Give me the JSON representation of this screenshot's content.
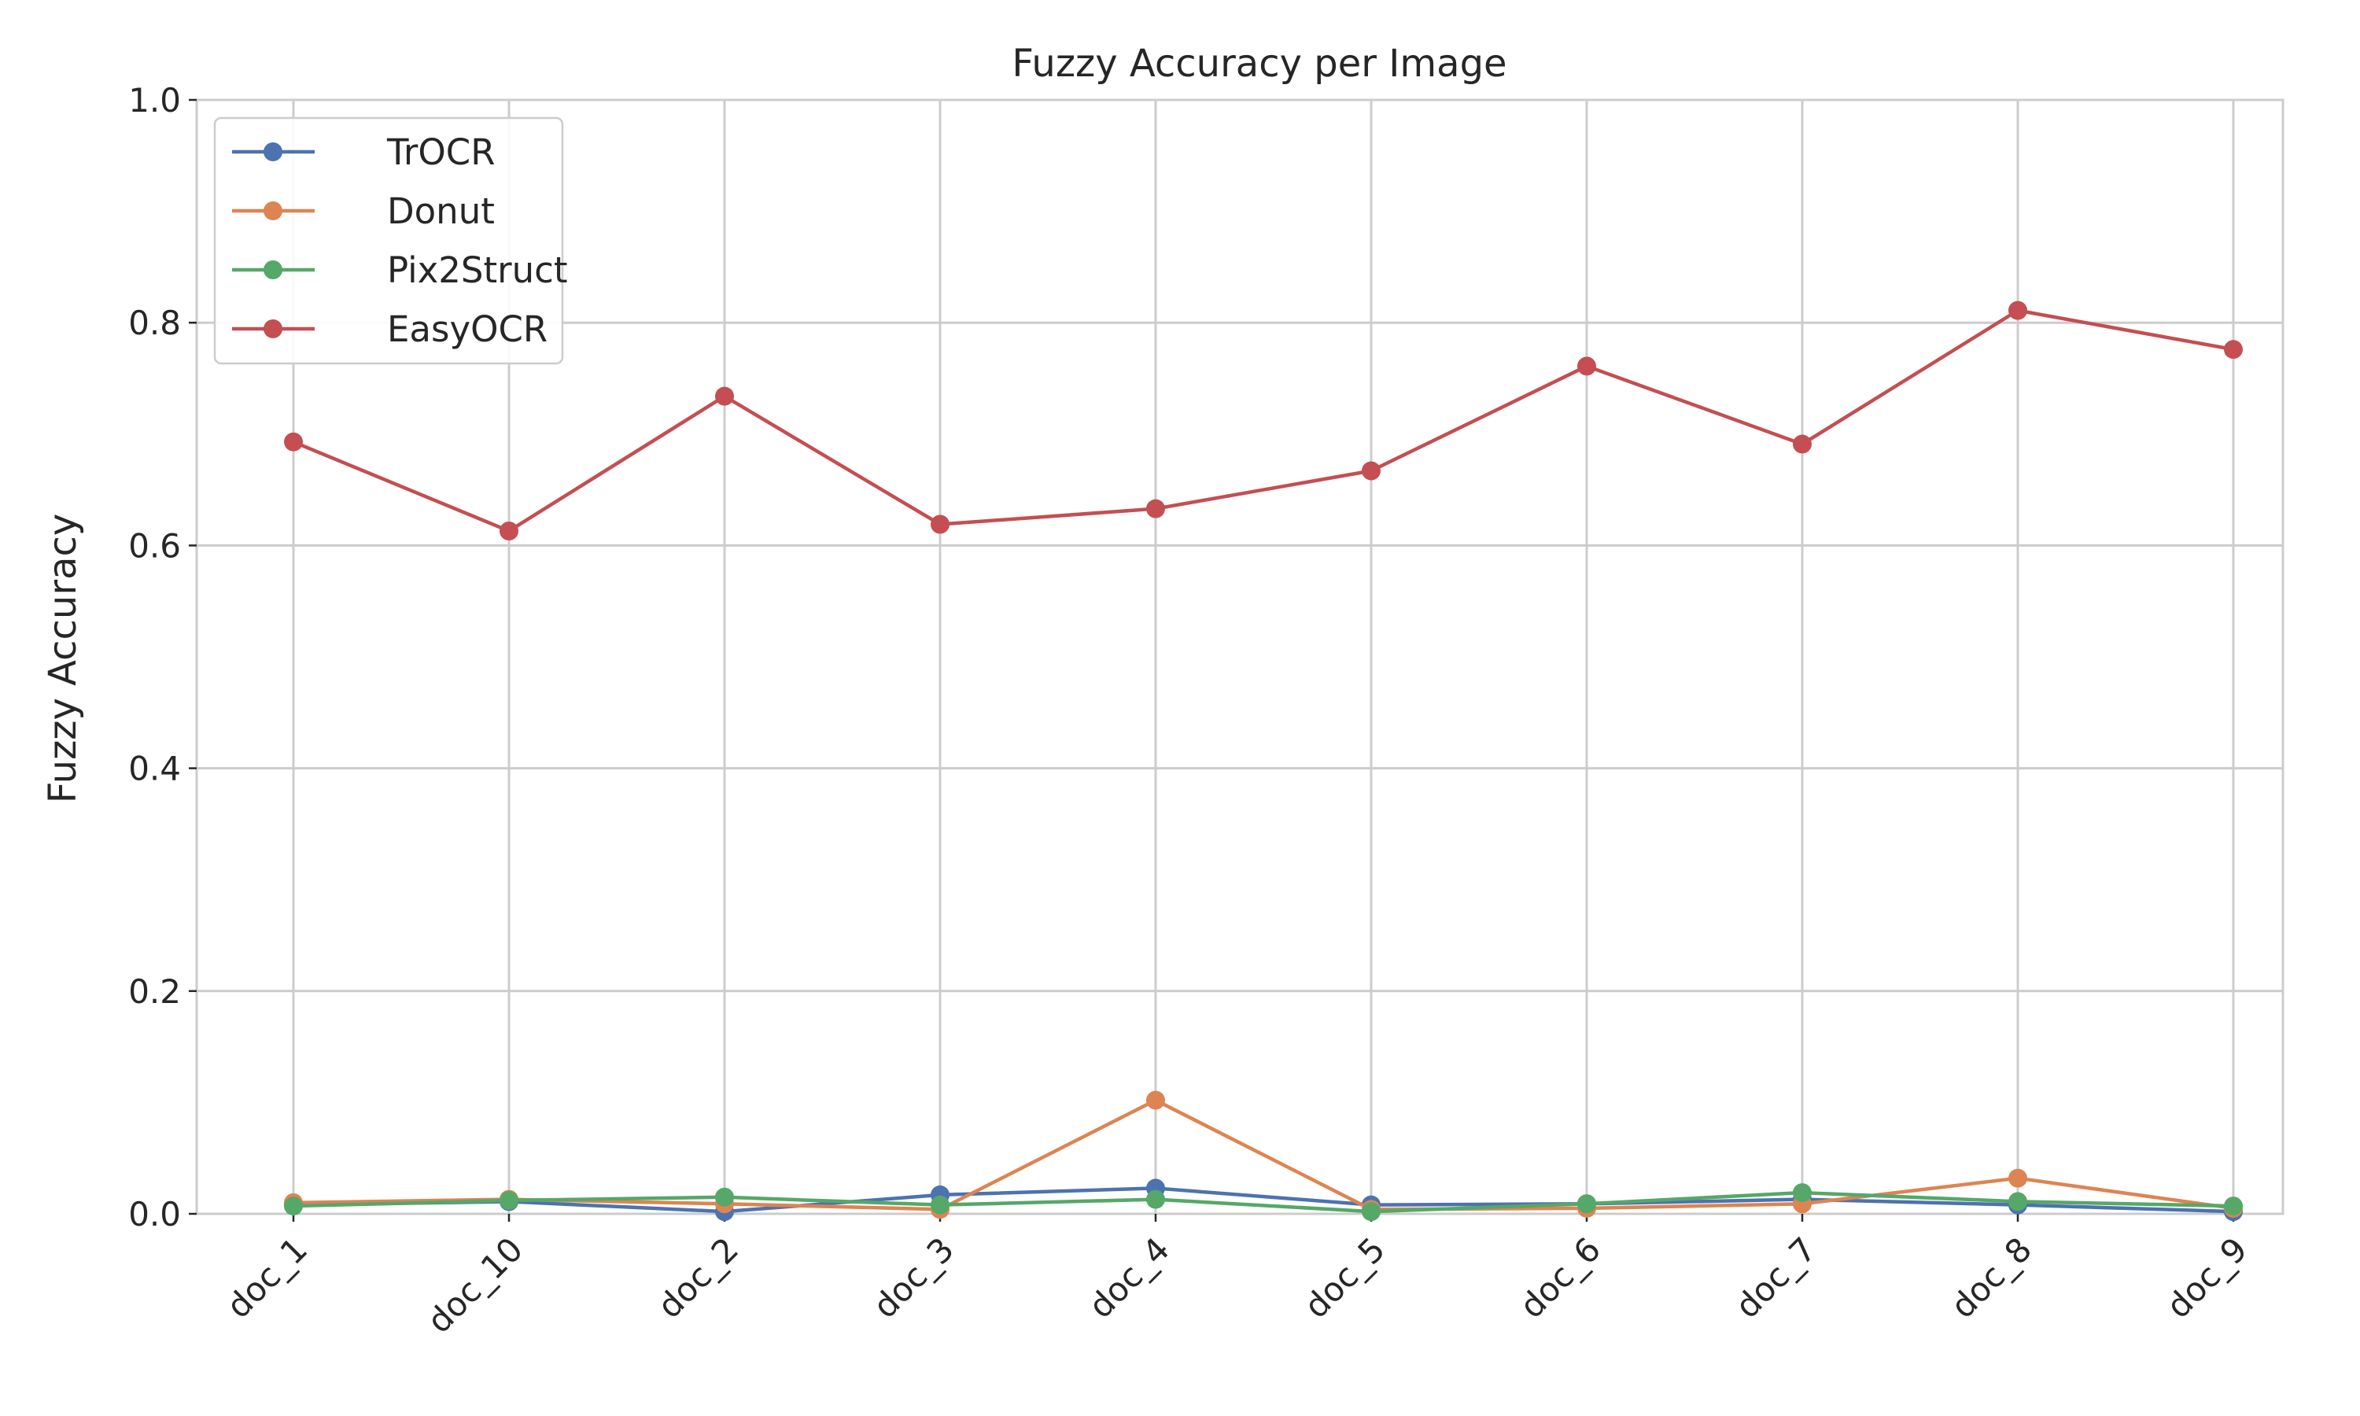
{
  "chart_data": {
    "type": "line",
    "title": "Fuzzy Accuracy per Image",
    "xlabel": "",
    "ylabel": "Fuzzy Accuracy",
    "categories": [
      "doc_1",
      "doc_10",
      "doc_2",
      "doc_3",
      "doc_4",
      "doc_5",
      "doc_6",
      "doc_7",
      "doc_8",
      "doc_9"
    ],
    "ylim": [
      0,
      1.0
    ],
    "yticks": [
      0.0,
      0.2,
      0.4,
      0.6,
      0.8,
      1.0
    ],
    "ytick_labels": [
      "0.0",
      "0.2",
      "0.4",
      "0.6",
      "0.8",
      "1.0"
    ],
    "grid": true,
    "legend_position": "top-left",
    "series": [
      {
        "name": "TrOCR",
        "color": "#4c72b0",
        "values": [
          0.008,
          0.011,
          0.002,
          0.017,
          0.023,
          0.008,
          0.009,
          0.013,
          0.008,
          0.002
        ]
      },
      {
        "name": "Donut",
        "color": "#dd8452",
        "values": [
          0.01,
          0.013,
          0.009,
          0.004,
          0.102,
          0.004,
          0.005,
          0.009,
          0.032,
          0.005
        ]
      },
      {
        "name": "Pix2Struct",
        "color": "#55a868",
        "values": [
          0.007,
          0.012,
          0.015,
          0.008,
          0.013,
          0.002,
          0.009,
          0.019,
          0.011,
          0.007
        ]
      },
      {
        "name": "EasyOCR",
        "color": "#c44e52",
        "values": [
          0.693,
          0.613,
          0.734,
          0.619,
          0.633,
          0.667,
          0.761,
          0.691,
          0.811,
          0.776
        ]
      }
    ]
  }
}
